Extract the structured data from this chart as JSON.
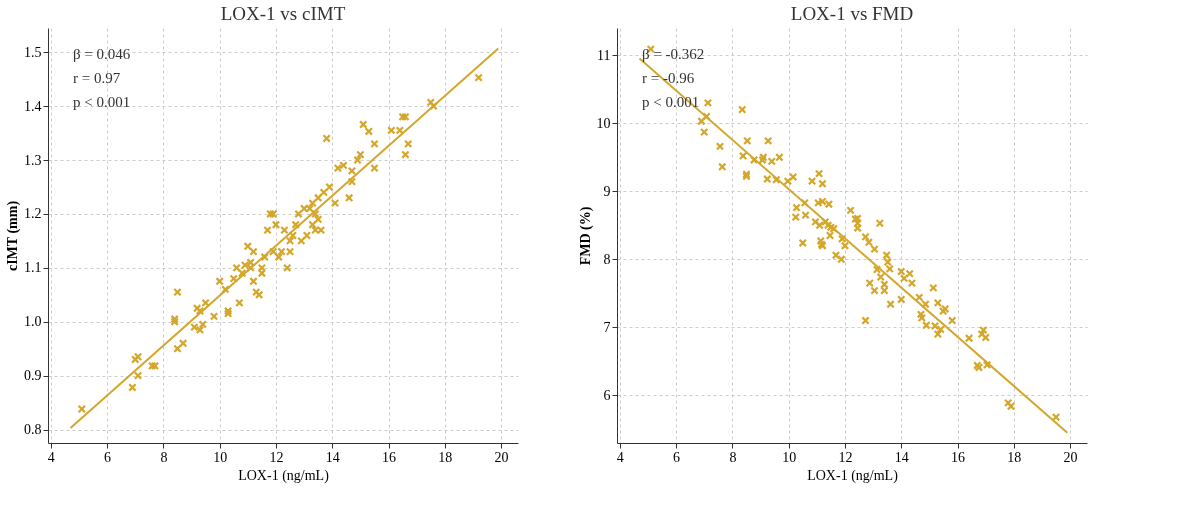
{
  "chart_data": [
    {
      "type": "scatter",
      "title": "LOX-1 vs cIMT",
      "xlabel": "LOX-1 (ng/mL)",
      "ylabel": "cIMT (mm)",
      "xlim": [
        3.9,
        20.6
      ],
      "ylim": [
        0.775,
        1.545
      ],
      "xticks": [
        4,
        6,
        8,
        10,
        12,
        14,
        16,
        18,
        20
      ],
      "yticks": [
        0.8,
        0.9,
        {
          "value": 1.0,
          "label": "1.0"
        },
        1.1,
        1.2,
        1.3,
        1.4,
        1.5
      ],
      "grid": true,
      "annotations": [
        "β = 0.046",
        "r = 0.97",
        "p < 0.001"
      ],
      "series": [
        {
          "type": "scatter",
          "marker": "cross",
          "color": "#d4a62a",
          "x": [
            5.1,
            6.9,
            7.0,
            7.1,
            7.1,
            7.6,
            7.7,
            8.4,
            8.4,
            8.5,
            8.5,
            8.7,
            9.1,
            9.2,
            9.3,
            9.3,
            9.4,
            9.5,
            9.8,
            10.0,
            10.2,
            10.3,
            10.3,
            10.5,
            10.6,
            10.7,
            10.8,
            10.9,
            11.0,
            11.1,
            11.1,
            11.2,
            11.2,
            11.3,
            11.4,
            11.5,
            11.5,
            11.6,
            11.7,
            11.8,
            11.9,
            11.9,
            12.0,
            12.1,
            12.2,
            12.3,
            12.4,
            12.5,
            12.5,
            12.6,
            12.7,
            12.8,
            12.9,
            13.0,
            13.1,
            13.2,
            13.3,
            13.3,
            13.4,
            13.4,
            13.5,
            13.5,
            13.6,
            13.7,
            13.9,
            13.8,
            14.1,
            14.2,
            14.4,
            14.6,
            14.7,
            14.7,
            14.9,
            15.0,
            15.1,
            15.3,
            15.5,
            15.5,
            16.1,
            16.4,
            16.5,
            16.6,
            16.6,
            16.7,
            17.5,
            17.6,
            19.2
          ],
          "values": [
            0.838,
            0.878,
            0.93,
            0.935,
            0.9,
            0.918,
            0.918,
            1.005,
            1.0,
            1.055,
            0.95,
            0.96,
            0.99,
            1.025,
            0.985,
            1.02,
            0.995,
            1.035,
            1.01,
            1.075,
            1.06,
            1.015,
            1.02,
            1.08,
            1.1,
            1.035,
            1.09,
            1.105,
            1.14,
            1.11,
            1.1,
            1.075,
            1.13,
            1.055,
            1.05,
            1.1,
            1.09,
            1.12,
            1.17,
            1.2,
            1.2,
            1.13,
            1.18,
            1.12,
            1.13,
            1.17,
            1.1,
            1.15,
            1.13,
            1.16,
            1.18,
            1.2,
            1.15,
            1.21,
            1.16,
            1.21,
            1.18,
            1.22,
            1.2,
            1.17,
            1.19,
            1.23,
            1.17,
            1.24,
            1.25,
            1.34,
            1.22,
            1.285,
            1.29,
            1.23,
            1.28,
            1.26,
            1.3,
            1.31,
            1.366,
            1.353,
            1.33,
            1.285,
            1.355,
            1.355,
            1.38,
            1.38,
            1.31,
            1.33,
            1.407,
            1.4,
            1.453
          ]
        },
        {
          "type": "line",
          "color": "#d4a62a",
          "x": [
            4.7,
            19.9
          ],
          "values": [
            0.803,
            1.507
          ]
        }
      ]
    },
    {
      "type": "scatter",
      "title": "LOX-1 vs FMD",
      "xlabel": "LOX-1 (ng/mL)",
      "ylabel": "FMD (%)",
      "xlim": [
        3.9,
        20.6
      ],
      "ylim": [
        5.3,
        11.4
      ],
      "xticks": [
        4,
        6,
        8,
        10,
        12,
        14,
        16,
        18,
        20
      ],
      "yticks": [
        6,
        7,
        8,
        9,
        10,
        11
      ],
      "grid": true,
      "annotations": [
        "β = -0.362",
        "r = -0.96",
        "p < 0.001"
      ],
      "series": [
        {
          "type": "scatter",
          "marker": "cross",
          "color": "#d4a62a",
          "x": [
            5.1,
            7.13,
            7.08,
            6.9,
            7.0,
            7.56,
            7.64,
            8.35,
            8.53,
            8.38,
            8.5,
            8.5,
            8.77,
            9.07,
            9.1,
            9.27,
            9.4,
            9.24,
            9.67,
            9.56,
            9.97,
            10.16,
            10.28,
            10.25,
            10.5,
            10.57,
            10.6,
            10.83,
            11.08,
            11.2,
            11.05,
            11.2,
            11.43,
            10.95,
            11.1,
            11.3,
            11.4,
            11.5,
            11.6,
            11.17,
            11.14,
            11.2,
            11.47,
            11.68,
            11.87,
            11.9,
            12.0,
            12.2,
            12.37,
            12.45,
            12.45,
            12.45,
            13.24,
            12.73,
            12.85,
            13.05,
            12.73,
            12.88,
            13.05,
            13.14,
            13.27,
            13.4,
            13.4,
            13.48,
            13.52,
            13.59,
            13.62,
            14.0,
            14.0,
            14.1,
            14.3,
            14.38,
            14.64,
            14.7,
            14.73,
            14.86,
            14.89,
            15.14,
            15.2,
            15.3,
            15.3,
            15.4,
            15.49,
            15.56,
            15.81,
            16.41,
            16.7,
            16.76,
            16.86,
            16.92,
            17.0,
            17.05,
            17.8,
            17.9,
            19.5
          ],
          "values": [
            11.09,
            10.3,
            10.1,
            10.03,
            9.87,
            9.66,
            9.36,
            10.2,
            9.74,
            9.52,
            9.25,
            9.22,
            9.46,
            9.46,
            9.5,
            9.74,
            9.44,
            9.18,
            9.5,
            9.17,
            9.15,
            9.21,
            8.76,
            8.62,
            8.24,
            8.83,
            8.65,
            9.15,
            9.26,
            9.11,
            8.83,
            8.85,
            8.81,
            8.55,
            8.5,
            8.55,
            8.5,
            8.47,
            8.45,
            8.22,
            8.27,
            8.2,
            8.35,
            8.06,
            8.0,
            8.3,
            8.2,
            8.72,
            8.59,
            8.6,
            8.53,
            8.46,
            8.53,
            8.33,
            8.25,
            8.15,
            7.1,
            7.65,
            7.54,
            7.85,
            7.74,
            7.63,
            7.54,
            8.06,
            7.96,
            7.86,
            7.34,
            7.41,
            7.82,
            7.72,
            7.79,
            7.65,
            7.44,
            7.19,
            7.14,
            7.34,
            7.03,
            7.58,
            7.02,
            7.36,
            6.9,
            6.97,
            7.24,
            7.27,
            7.1,
            6.84,
            6.44,
            6.41,
            6.9,
            6.96,
            6.85,
            6.45,
            5.89,
            5.84,
            5.68
          ]
        },
        {
          "type": "line",
          "color": "#d4a62a",
          "x": [
            4.7,
            19.9
          ],
          "values": [
            10.95,
            5.45
          ]
        }
      ]
    }
  ]
}
